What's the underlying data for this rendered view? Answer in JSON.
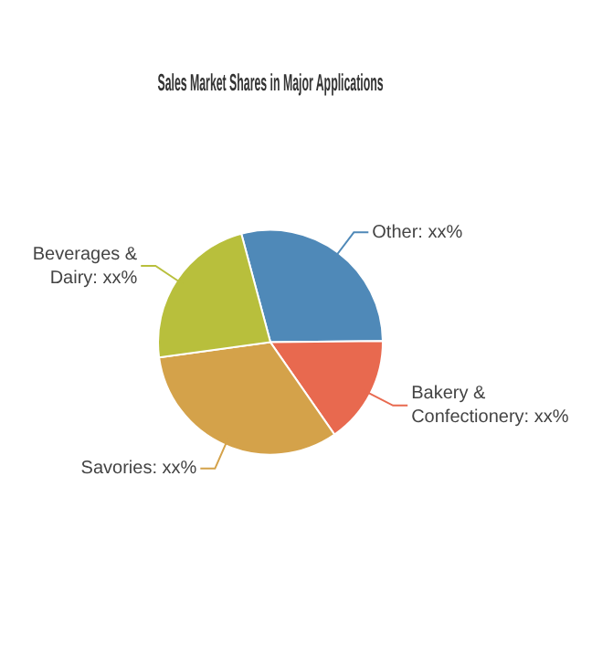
{
  "chart_data": {
    "type": "pie",
    "title": "Sales Market Shares in Major Applications",
    "categories": [
      "Other",
      "Bakery & Confectionery",
      "Savories",
      "Beverages & Dairy"
    ],
    "values": [
      29,
      15.5,
      32.5,
      23
    ],
    "value_labels": [
      "xx%",
      "xx%",
      "xx%",
      "xx%"
    ],
    "colors": [
      "#4f89b8",
      "#e8694f",
      "#d4a24a",
      "#b8bf3c"
    ],
    "legend": false
  }
}
